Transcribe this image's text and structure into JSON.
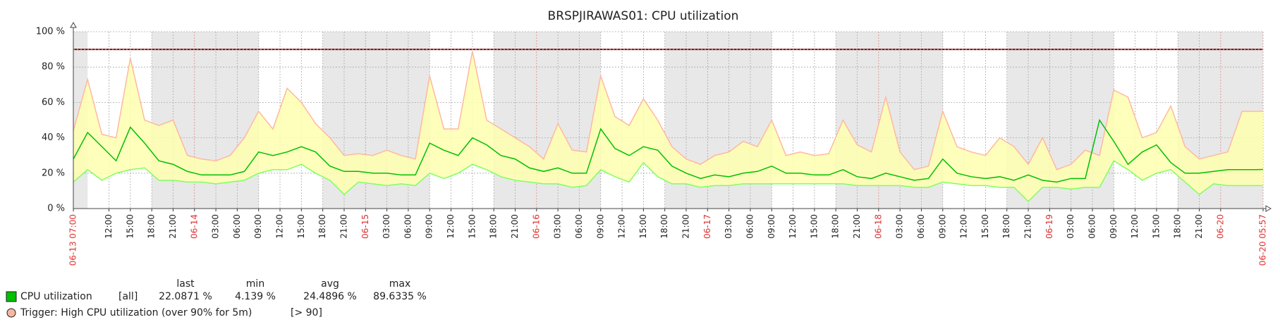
{
  "chart_data": {
    "type": "line",
    "title": "BRSPJIRAWAS01: CPU utilization",
    "x": [
      "06-13 07:00",
      "06-13 09:00",
      "06-13 11:00",
      "06-13 13:00",
      "06-13 15:00",
      "06-13 17:00",
      "06-13 19:00",
      "06-13 21:00",
      "06-13 23:00",
      "06-14 01:00",
      "06-14 03:00",
      "06-14 05:00",
      "06-14 07:00",
      "06-14 09:00",
      "06-14 11:00",
      "06-14 13:00",
      "06-14 15:00",
      "06-14 17:00",
      "06-14 19:00",
      "06-14 21:00",
      "06-14 23:00",
      "06-15 01:00",
      "06-15 03:00",
      "06-15 05:00",
      "06-15 07:00",
      "06-15 09:00",
      "06-15 11:00",
      "06-15 13:00",
      "06-15 15:00",
      "06-15 17:00",
      "06-15 19:00",
      "06-15 21:00",
      "06-15 23:00",
      "06-16 01:00",
      "06-16 03:00",
      "06-16 05:00",
      "06-16 07:00",
      "06-16 09:00",
      "06-16 11:00",
      "06-16 13:00",
      "06-16 15:00",
      "06-16 17:00",
      "06-16 19:00",
      "06-16 21:00",
      "06-16 23:00",
      "06-17 01:00",
      "06-17 03:00",
      "06-17 05:00",
      "06-17 07:00",
      "06-17 09:00",
      "06-17 11:00",
      "06-17 13:00",
      "06-17 15:00",
      "06-17 17:00",
      "06-17 19:00",
      "06-17 21:00",
      "06-17 23:00",
      "06-18 01:00",
      "06-18 03:00",
      "06-18 05:00",
      "06-18 07:00",
      "06-18 09:00",
      "06-18 11:00",
      "06-18 13:00",
      "06-18 15:00",
      "06-18 17:00",
      "06-18 19:00",
      "06-18 21:00",
      "06-18 23:00",
      "06-19 01:00",
      "06-19 03:00",
      "06-19 05:00",
      "06-19 07:00",
      "06-19 09:00",
      "06-19 11:00",
      "06-19 13:00",
      "06-19 15:00",
      "06-19 17:00",
      "06-19 19:00",
      "06-19 21:00",
      "06-19 23:00",
      "06-20 01:00",
      "06-20 03:00",
      "06-20 05:00",
      "06-20 05:57"
    ],
    "series": [
      {
        "name": "CPU utilization",
        "color": "#00c000",
        "min_color": "#80ff60",
        "max_color": "#ffb8a0",
        "band_color": "#ffffb0",
        "values": [
          28,
          43,
          35,
          27,
          46,
          37,
          27,
          25,
          21,
          19,
          19,
          19,
          21,
          32,
          30,
          32,
          35,
          32,
          24,
          21,
          21,
          20,
          20,
          19,
          19,
          37,
          33,
          30,
          40,
          36,
          30,
          28,
          23,
          21,
          23,
          20,
          20,
          45,
          34,
          30,
          35,
          33,
          24,
          20,
          17,
          19,
          18,
          20,
          21,
          24,
          20,
          20,
          19,
          19,
          22,
          18,
          17,
          20,
          18,
          16,
          17,
          28,
          20,
          18,
          17,
          18,
          16,
          19,
          16,
          15,
          17,
          17,
          50,
          38,
          25,
          32,
          36,
          26,
          20,
          20,
          21,
          22,
          22,
          22,
          22.0871
        ],
        "min": [
          15,
          22,
          16,
          20,
          22,
          23,
          16,
          16,
          15,
          15,
          14,
          15,
          16,
          20,
          22,
          22,
          25,
          20,
          16,
          8,
          15,
          14,
          13,
          14,
          13,
          20,
          17,
          20,
          25,
          22,
          18,
          16,
          15,
          14,
          14,
          12,
          13,
          22,
          18,
          15,
          26,
          18,
          14,
          14,
          12,
          13,
          13,
          14,
          14,
          14,
          14,
          14,
          14,
          14,
          14,
          13,
          13,
          13,
          13,
          12,
          12,
          15,
          14,
          13,
          13,
          12,
          12,
          4,
          12,
          12,
          11,
          12,
          12,
          27,
          22,
          16,
          20,
          22,
          15,
          8,
          14,
          13,
          13,
          13,
          13
        ],
        "max": [
          44,
          73,
          42,
          40,
          85,
          50,
          47,
          50,
          30,
          28,
          27,
          30,
          40,
          55,
          45,
          68,
          60,
          48,
          40,
          30,
          31,
          30,
          33,
          30,
          28,
          75,
          45,
          45,
          89,
          50,
          45,
          40,
          35,
          28,
          48,
          33,
          32,
          75,
          52,
          47,
          62,
          50,
          35,
          28,
          25,
          30,
          32,
          38,
          35,
          50,
          30,
          32,
          30,
          31,
          50,
          36,
          32,
          63,
          32,
          22,
          24,
          55,
          35,
          32,
          30,
          40,
          35,
          25,
          40,
          22,
          25,
          33,
          30,
          67,
          63,
          40,
          43,
          58,
          35,
          28,
          30,
          32,
          55,
          55,
          55
        ]
      }
    ],
    "xlim": [
      "06-13 07:00",
      "06-20 05:57"
    ],
    "xticks": [
      {
        "value": "06-13 07:00",
        "label": "06-13 07:00"
      },
      {
        "value": "06-13 12:00",
        "label": "12:00"
      },
      {
        "value": "06-13 15:00",
        "label": "15:00"
      },
      {
        "value": "06-13 18:00",
        "label": "18:00"
      },
      {
        "value": "06-13 21:00",
        "label": "21:00"
      },
      {
        "value": "06-14 00:00",
        "label": "06-14"
      },
      {
        "value": "06-14 03:00",
        "label": "03:00"
      },
      {
        "value": "06-14 06:00",
        "label": "06:00"
      },
      {
        "value": "06-14 09:00",
        "label": "09:00"
      },
      {
        "value": "06-14 12:00",
        "label": "12:00"
      },
      {
        "value": "06-14 15:00",
        "label": "15:00"
      },
      {
        "value": "06-14 18:00",
        "label": "18:00"
      },
      {
        "value": "06-14 21:00",
        "label": "21:00"
      },
      {
        "value": "06-15 00:00",
        "label": "06-15"
      },
      {
        "value": "06-15 03:00",
        "label": "03:00"
      },
      {
        "value": "06-15 06:00",
        "label": "06:00"
      },
      {
        "value": "06-15 09:00",
        "label": "09:00"
      },
      {
        "value": "06-15 12:00",
        "label": "12:00"
      },
      {
        "value": "06-15 15:00",
        "label": "15:00"
      },
      {
        "value": "06-15 18:00",
        "label": "18:00"
      },
      {
        "value": "06-15 21:00",
        "label": "21:00"
      },
      {
        "value": "06-16 00:00",
        "label": "06-16"
      },
      {
        "value": "06-16 03:00",
        "label": "03:00"
      },
      {
        "value": "06-16 06:00",
        "label": "06:00"
      },
      {
        "value": "06-16 09:00",
        "label": "09:00"
      },
      {
        "value": "06-16 12:00",
        "label": "12:00"
      },
      {
        "value": "06-16 15:00",
        "label": "15:00"
      },
      {
        "value": "06-16 18:00",
        "label": "18:00"
      },
      {
        "value": "06-16 21:00",
        "label": "21:00"
      },
      {
        "value": "06-17 00:00",
        "label": "06-17"
      },
      {
        "value": "06-17 03:00",
        "label": "03:00"
      },
      {
        "value": "06-17 06:00",
        "label": "06:00"
      },
      {
        "value": "06-17 09:00",
        "label": "09:00"
      },
      {
        "value": "06-17 12:00",
        "label": "12:00"
      },
      {
        "value": "06-17 15:00",
        "label": "15:00"
      },
      {
        "value": "06-17 18:00",
        "label": "18:00"
      },
      {
        "value": "06-17 21:00",
        "label": "21:00"
      },
      {
        "value": "06-18 00:00",
        "label": "06-18"
      },
      {
        "value": "06-18 03:00",
        "label": "03:00"
      },
      {
        "value": "06-18 06:00",
        "label": "06:00"
      },
      {
        "value": "06-18 09:00",
        "label": "09:00"
      },
      {
        "value": "06-18 12:00",
        "label": "12:00"
      },
      {
        "value": "06-18 15:00",
        "label": "15:00"
      },
      {
        "value": "06-18 18:00",
        "label": "18:00"
      },
      {
        "value": "06-18 21:00",
        "label": "21:00"
      },
      {
        "value": "06-19 00:00",
        "label": "06-19"
      },
      {
        "value": "06-19 03:00",
        "label": "03:00"
      },
      {
        "value": "06-19 06:00",
        "label": "06:00"
      },
      {
        "value": "06-19 09:00",
        "label": "09:00"
      },
      {
        "value": "06-19 12:00",
        "label": "12:00"
      },
      {
        "value": "06-19 15:00",
        "label": "15:00"
      },
      {
        "value": "06-19 18:00",
        "label": "18:00"
      },
      {
        "value": "06-19 21:00",
        "label": "21:00"
      },
      {
        "value": "06-20 00:00",
        "label": "06-20"
      },
      {
        "value": "06-20 05:57",
        "label": "06-20 05:57"
      }
    ],
    "ylim": [
      0,
      100
    ],
    "yticks": [
      {
        "value": 0,
        "label": "0 %"
      },
      {
        "value": 20,
        "label": "20 %"
      },
      {
        "value": 40,
        "label": "40 %"
      },
      {
        "value": 60,
        "label": "60 %"
      },
      {
        "value": 80,
        "label": "80 %"
      },
      {
        "value": 100,
        "label": "100 %"
      }
    ],
    "grid": true,
    "threshold": {
      "value": 90,
      "label": "[> 90]",
      "name": "Trigger: High CPU utilization (over 90% for 5m)",
      "color": "#f4b8a0"
    },
    "legend": {
      "item": "[all]",
      "headers": [
        "last",
        "min",
        "avg",
        "max"
      ],
      "values": [
        22.0871,
        4.139,
        24.4896,
        89.6335
      ],
      "value_labels": [
        "22.0871 %",
        "4.139 %",
        "24.4896 %",
        "89.6335 %"
      ]
    }
  }
}
